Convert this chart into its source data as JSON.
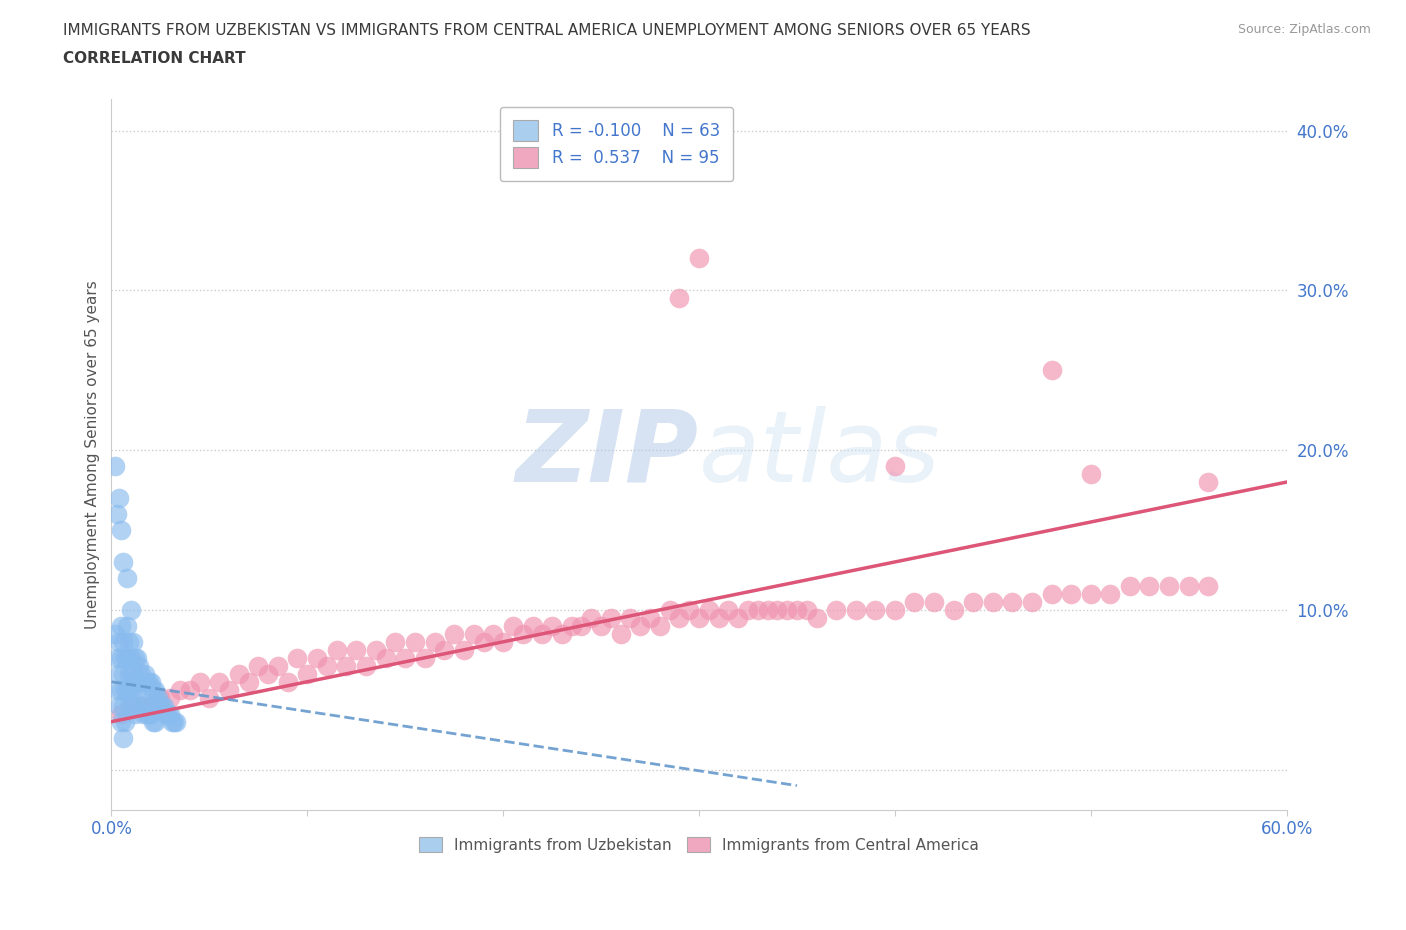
{
  "title_line1": "IMMIGRANTS FROM UZBEKISTAN VS IMMIGRANTS FROM CENTRAL AMERICA UNEMPLOYMENT AMONG SENIORS OVER 65 YEARS",
  "title_line2": "CORRELATION CHART",
  "title_color": "#3a3a3a",
  "source_text": "Source: ZipAtlas.com",
  "ylabel": "Unemployment Among Seniors over 65 years",
  "xlim": [
    0.0,
    0.6
  ],
  "ylim": [
    -0.025,
    0.42
  ],
  "background_color": "#ffffff",
  "legend_R1": "-0.100",
  "legend_N1": "63",
  "legend_R2": "0.537",
  "legend_N2": "95",
  "legend_color1": "#aacfee",
  "legend_color2": "#f0a8c0",
  "series1_color": "#88bbee",
  "series2_color": "#f093b0",
  "trendline1_color": "#6699cc",
  "trendline2_color": "#dd5577",
  "grid_color": "#cccccc",
  "watermark_color": "#ddeeff",
  "uzbekistan_x": [
    0.002,
    0.003,
    0.003,
    0.004,
    0.004,
    0.004,
    0.005,
    0.005,
    0.005,
    0.005,
    0.006,
    0.006,
    0.006,
    0.006,
    0.007,
    0.007,
    0.007,
    0.008,
    0.008,
    0.008,
    0.009,
    0.009,
    0.009,
    0.01,
    0.01,
    0.01,
    0.011,
    0.011,
    0.011,
    0.012,
    0.012,
    0.012,
    0.013,
    0.013,
    0.014,
    0.014,
    0.015,
    0.015,
    0.016,
    0.016,
    0.017,
    0.017,
    0.018,
    0.018,
    0.019,
    0.019,
    0.02,
    0.02,
    0.021,
    0.021,
    0.022,
    0.022,
    0.023,
    0.024,
    0.025,
    0.026,
    0.027,
    0.028,
    0.029,
    0.03,
    0.031,
    0.032,
    0.033
  ],
  "uzbekistan_y": [
    0.085,
    0.07,
    0.05,
    0.08,
    0.06,
    0.04,
    0.09,
    0.07,
    0.05,
    0.03,
    0.08,
    0.06,
    0.04,
    0.02,
    0.07,
    0.05,
    0.03,
    0.09,
    0.07,
    0.05,
    0.08,
    0.06,
    0.04,
    0.1,
    0.07,
    0.05,
    0.08,
    0.06,
    0.04,
    0.07,
    0.055,
    0.035,
    0.07,
    0.05,
    0.065,
    0.045,
    0.06,
    0.04,
    0.055,
    0.035,
    0.06,
    0.04,
    0.055,
    0.035,
    0.055,
    0.035,
    0.055,
    0.035,
    0.05,
    0.03,
    0.05,
    0.03,
    0.045,
    0.045,
    0.04,
    0.04,
    0.04,
    0.035,
    0.035,
    0.035,
    0.03,
    0.03,
    0.03
  ],
  "uzbekistan_y_outliers": [
    0.19,
    0.16,
    0.17,
    0.15,
    0.13,
    0.12
  ],
  "uzbekistan_x_outliers": [
    0.002,
    0.003,
    0.004,
    0.005,
    0.006,
    0.008
  ],
  "central_america_x": [
    0.005,
    0.01,
    0.02,
    0.03,
    0.04,
    0.05,
    0.06,
    0.07,
    0.08,
    0.09,
    0.1,
    0.11,
    0.12,
    0.13,
    0.14,
    0.15,
    0.16,
    0.17,
    0.18,
    0.19,
    0.2,
    0.21,
    0.22,
    0.23,
    0.24,
    0.25,
    0.26,
    0.27,
    0.28,
    0.29,
    0.3,
    0.31,
    0.32,
    0.33,
    0.34,
    0.35,
    0.36,
    0.37,
    0.38,
    0.39,
    0.4,
    0.41,
    0.42,
    0.43,
    0.44,
    0.45,
    0.46,
    0.47,
    0.48,
    0.49,
    0.5,
    0.51,
    0.52,
    0.53,
    0.54,
    0.55,
    0.56,
    0.015,
    0.025,
    0.035,
    0.045,
    0.055,
    0.065,
    0.075,
    0.085,
    0.095,
    0.105,
    0.115,
    0.125,
    0.135,
    0.145,
    0.155,
    0.165,
    0.175,
    0.185,
    0.195,
    0.205,
    0.215,
    0.225,
    0.235,
    0.245,
    0.255,
    0.265,
    0.275,
    0.285,
    0.295,
    0.305,
    0.315,
    0.325,
    0.335,
    0.345,
    0.355
  ],
  "central_america_y": [
    0.035,
    0.04,
    0.04,
    0.045,
    0.05,
    0.045,
    0.05,
    0.055,
    0.06,
    0.055,
    0.06,
    0.065,
    0.065,
    0.065,
    0.07,
    0.07,
    0.07,
    0.075,
    0.075,
    0.08,
    0.08,
    0.085,
    0.085,
    0.085,
    0.09,
    0.09,
    0.085,
    0.09,
    0.09,
    0.095,
    0.095,
    0.095,
    0.095,
    0.1,
    0.1,
    0.1,
    0.095,
    0.1,
    0.1,
    0.1,
    0.1,
    0.105,
    0.105,
    0.1,
    0.105,
    0.105,
    0.105,
    0.105,
    0.11,
    0.11,
    0.11,
    0.11,
    0.115,
    0.115,
    0.115,
    0.115,
    0.115,
    0.04,
    0.045,
    0.05,
    0.055,
    0.055,
    0.06,
    0.065,
    0.065,
    0.07,
    0.07,
    0.075,
    0.075,
    0.075,
    0.08,
    0.08,
    0.08,
    0.085,
    0.085,
    0.085,
    0.09,
    0.09,
    0.09,
    0.09,
    0.095,
    0.095,
    0.095,
    0.095,
    0.1,
    0.1,
    0.1,
    0.1,
    0.1,
    0.1,
    0.1,
    0.1
  ],
  "central_america_outliers_x": [
    0.3,
    0.29,
    0.4,
    0.5,
    0.48,
    0.56
  ],
  "central_america_outliers_y": [
    0.32,
    0.295,
    0.19,
    0.185,
    0.25,
    0.18
  ],
  "trendline_pink_x0": 0.0,
  "trendline_pink_y0": 0.03,
  "trendline_pink_x1": 0.6,
  "trendline_pink_y1": 0.18,
  "trendline_blue_x0": 0.0,
  "trendline_blue_y0": 0.055,
  "trendline_blue_x1": 0.35,
  "trendline_blue_y1": -0.01
}
